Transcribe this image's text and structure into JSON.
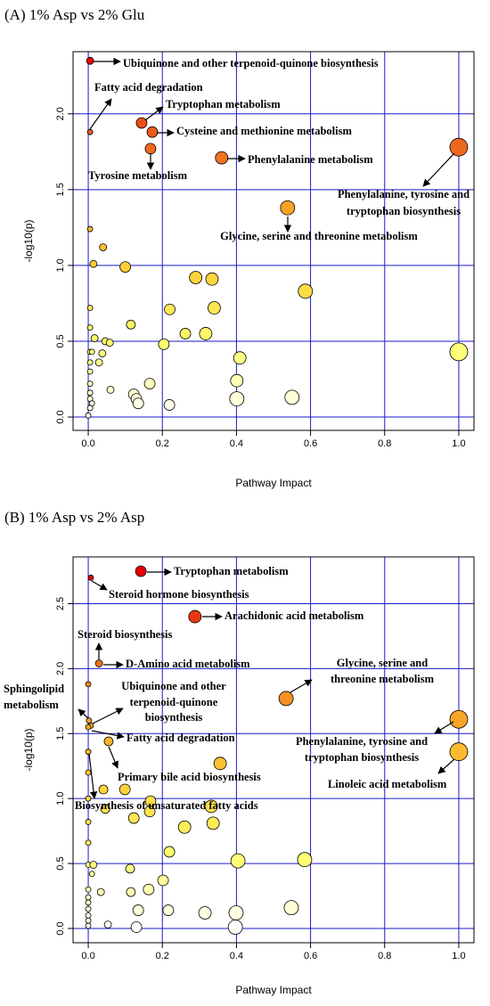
{
  "chart_data": [
    {
      "type": "scatter",
      "title": "(A) 1% Asp vs 2% Glu",
      "x_label": "Pathway Impact",
      "y_label": "-log10(p)",
      "xlim": [
        -0.041,
        1.041
      ],
      "ylim": [
        -0.088,
        2.41
      ],
      "xticks": [
        {
          "value": 0,
          "label": "0.0"
        },
        0.2,
        0.4,
        0.6,
        0.8,
        {
          "value": 1,
          "label": "1.0"
        }
      ],
      "yticks": [
        {
          "value": 0,
          "label": "0.0"
        },
        0.5,
        {
          "value": 1,
          "label": "1.0"
        },
        1.5,
        {
          "value": 2,
          "label": "2.0"
        }
      ],
      "grid": true,
      "grid_color": "#1a1acc",
      "colorscale": [
        "#ffffff",
        "#ffff70",
        "#ffd23a",
        "#f7a024",
        "#ec5a1c",
        "#e60000"
      ],
      "x": [
        0.005,
        0.005,
        0.144,
        0.173,
        0.168,
        0.36,
        1.0,
        0.538,
        0.005,
        0.04,
        0.014,
        0.1,
        0.29,
        0.334,
        0.586,
        0.005,
        0.22,
        0.34,
        0.115,
        0.005,
        0.262,
        0.317,
        0.017,
        0.046,
        0.058,
        0.204,
        0.005,
        0.01,
        0.038,
        1.0,
        0.409,
        0.005,
        0.029,
        0.005,
        0.005,
        0.166,
        0.401,
        0.06,
        0.123,
        0.13,
        0.135,
        0.005,
        0.005,
        0.01,
        0.005,
        0.401,
        0.55,
        0.219,
        0.0
      ],
      "values": [
        2.35,
        1.88,
        1.94,
        1.88,
        1.77,
        1.71,
        1.78,
        1.38,
        1.24,
        1.12,
        1.01,
        0.99,
        0.92,
        0.91,
        0.83,
        0.72,
        0.71,
        0.72,
        0.61,
        0.59,
        0.55,
        0.55,
        0.52,
        0.5,
        0.49,
        0.48,
        0.43,
        0.43,
        0.42,
        0.43,
        0.39,
        0.36,
        0.36,
        0.3,
        0.22,
        0.22,
        0.24,
        0.18,
        0.15,
        0.12,
        0.09,
        0.16,
        0.12,
        0.09,
        0.06,
        0.12,
        0.13,
        0.08,
        0.01
      ],
      "sizes": [
        4,
        3,
        6,
        6,
        6,
        7,
        10,
        8,
        3,
        4,
        4,
        6,
        7,
        7,
        8,
        3,
        6,
        7,
        5,
        3,
        6,
        7,
        4,
        4,
        4,
        6,
        3,
        3,
        4,
        10,
        7,
        3,
        4,
        3,
        3,
        6,
        7,
        4,
        6,
        6,
        6,
        3,
        3,
        3,
        3,
        8,
        8,
        6,
        3
      ],
      "annotations": [
        "Ubiquinone and other terpenoid-quinone biosynthesis",
        "Fatty acid degradation",
        "Tryptophan metabolism",
        "Cysteine and methionine metabolism",
        "Tyrosine metabolism",
        "Phenylalanine metabolism",
        "Phenylalanine, tyrosine and",
        "tryptophan biosynthesis",
        "Glycine, serine and threonine metabolism"
      ]
    },
    {
      "type": "scatter",
      "title": "(B) 1% Asp vs 2% Asp",
      "x_label": "Pathway Impact",
      "y_label": "-log10(p)",
      "xlim": [
        -0.041,
        1.041
      ],
      "ylim": [
        -0.11,
        2.86
      ],
      "xticks": [
        {
          "value": 0,
          "label": "0.0"
        },
        0.2,
        0.4,
        0.6,
        0.8,
        {
          "value": 1,
          "label": "1.0"
        }
      ],
      "yticks": [
        {
          "value": 0,
          "label": "0.0"
        },
        0.5,
        {
          "value": 1,
          "label": "1.0"
        },
        1.5,
        {
          "value": 2,
          "label": "2.0"
        },
        2.5
      ],
      "grid": true,
      "grid_color": "#1a1acc",
      "colorscale": [
        "#ffffff",
        "#ffff70",
        "#ffd23a",
        "#f7a024",
        "#ec5a1c",
        "#e60000"
      ],
      "x": [
        0.142,
        0.007,
        0.288,
        0.029,
        0.0,
        0.534,
        1.0,
        1.0,
        0.002,
        0.007,
        0.0,
        0.055,
        0.0,
        0.356,
        0.0,
        0.041,
        0.099,
        0.168,
        0.0,
        0.046,
        0.166,
        0.332,
        0.123,
        0.0,
        0.26,
        0.337,
        0.0,
        0.219,
        0.404,
        0.584,
        0.0,
        0.014,
        0.113,
        0.01,
        0.202,
        0.0,
        0.034,
        0.115,
        0.163,
        0.0,
        0.0,
        0.0,
        0.135,
        0.216,
        0.315,
        0.399,
        0.548,
        0.0,
        0.0,
        0.053,
        0.397,
        0.13,
        0.0
      ],
      "values": [
        2.75,
        2.7,
        2.4,
        2.04,
        1.88,
        1.77,
        1.61,
        1.36,
        1.6,
        1.56,
        1.55,
        1.44,
        1.36,
        1.27,
        1.2,
        1.07,
        1.07,
        0.98,
        1.0,
        0.92,
        0.9,
        0.94,
        0.85,
        0.82,
        0.78,
        0.81,
        0.66,
        0.59,
        0.52,
        0.53,
        0.49,
        0.49,
        0.46,
        0.42,
        0.37,
        0.3,
        0.28,
        0.28,
        0.3,
        0.24,
        0.2,
        0.15,
        0.14,
        0.14,
        0.12,
        0.12,
        0.16,
        0.1,
        0.06,
        0.03,
        0.01,
        0.01,
        0.02
      ],
      "sizes": [
        6,
        3,
        7,
        4,
        3,
        8,
        10,
        10,
        3,
        3,
        3,
        5,
        3,
        7,
        3,
        5,
        6,
        6,
        3,
        5,
        6,
        7,
        6,
        3,
        7,
        7,
        3,
        6,
        8,
        8,
        3,
        4,
        5,
        3,
        6,
        3,
        4,
        5,
        6,
        3,
        3,
        3,
        6,
        6,
        7,
        8,
        8,
        3,
        3,
        4,
        8,
        6,
        3
      ],
      "annotations": [
        "Tryptophan metabolism",
        "Steroid hormone biosynthesis",
        "Arachidonic acid metabolism",
        "Steroid biosynthesis",
        "D-Amino acid metabolism",
        "Glycine, serine and",
        "threonine metabolism",
        "Sphingolipid",
        "metabolism",
        "Ubiquinone and other",
        "terpenoid-quinone",
        "biosynthesis",
        "Fatty acid degradation",
        "Phenylalanine, tyrosine and",
        "tryptophan biosynthesis",
        "Primary bile acid biosynthesis",
        "Linoleic acid metabolism",
        "Biosynthesis of unsaturated fatty acids"
      ]
    }
  ]
}
